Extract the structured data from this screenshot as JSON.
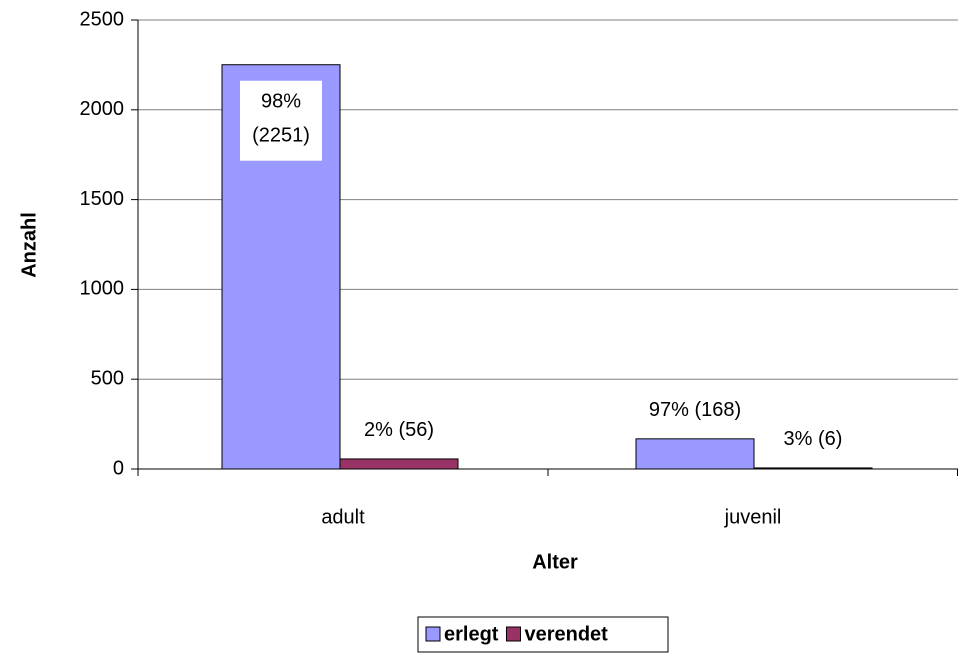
{
  "chart_data": {
    "type": "bar",
    "x_label": "Alter",
    "y_label": "Anzahl",
    "categories": [
      "adult",
      "juvenil"
    ],
    "series": [
      {
        "name": "erlegt",
        "color": "#9999ff",
        "values": [
          2251,
          168
        ],
        "value_labels": [
          "98% (2251)",
          "97% (168)"
        ]
      },
      {
        "name": "verendet",
        "color": "#993366",
        "values": [
          56,
          6
        ],
        "value_labels": [
          "2% (56)",
          "3% (6)"
        ]
      }
    ],
    "ylim": [
      0,
      2500
    ],
    "yticks": [
      0,
      500,
      1000,
      1500,
      2000,
      2500
    ],
    "grid": true,
    "legend": "bottom"
  }
}
